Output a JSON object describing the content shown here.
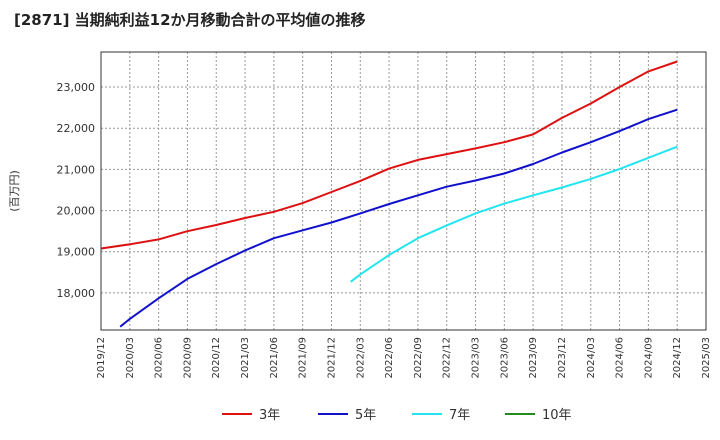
{
  "chart_data": {
    "type": "line",
    "title": "[2871]  当期純利益12か月移動合計の平均値の推移",
    "ylabel": "(百万円)",
    "xlabel": "",
    "ylim": [
      17100,
      23850
    ],
    "yticks": [
      18000,
      19000,
      20000,
      21000,
      22000,
      23000
    ],
    "ytick_labels": [
      "18,000",
      "19,000",
      "20,000",
      "21,000",
      "22,000",
      "23,000"
    ],
    "xticks": [
      "2019/12",
      "2020/03",
      "2020/06",
      "2020/09",
      "2020/12",
      "2021/03",
      "2021/06",
      "2021/09",
      "2021/12",
      "2022/03",
      "2022/06",
      "2022/09",
      "2022/12",
      "2023/03",
      "2023/06",
      "2023/09",
      "2023/12",
      "2024/03",
      "2024/06",
      "2024/09",
      "2024/12",
      "2025/03"
    ],
    "grid": true,
    "legend_position": "bottom",
    "series": [
      {
        "name": "3年",
        "color": "#dd1111",
        "x": [
          "2019/12",
          "2020/03",
          "2020/06",
          "2020/09",
          "2020/12",
          "2021/03",
          "2021/06",
          "2021/09",
          "2021/12",
          "2022/03",
          "2022/06",
          "2022/09",
          "2022/12",
          "2023/03",
          "2023/06",
          "2023/09",
          "2023/12",
          "2024/03",
          "2024/06",
          "2024/09",
          "2024/12"
        ],
        "values": [
          19080,
          19180,
          19300,
          19500,
          19650,
          19820,
          19970,
          20180,
          20450,
          20720,
          21020,
          21230,
          21370,
          21510,
          21660,
          21850,
          22250,
          22600,
          23000,
          23380,
          23620
        ]
      },
      {
        "name": "5年",
        "color": "#1111cc",
        "x": [
          "2020/02",
          "2020/03",
          "2020/06",
          "2020/09",
          "2020/12",
          "2021/03",
          "2021/06",
          "2021/09",
          "2021/12",
          "2022/03",
          "2022/06",
          "2022/09",
          "2022/12",
          "2023/03",
          "2023/06",
          "2023/09",
          "2023/12",
          "2024/03",
          "2024/06",
          "2024/09",
          "2024/12"
        ],
        "values": [
          17180,
          17370,
          17870,
          18340,
          18700,
          19030,
          19330,
          19520,
          19710,
          19930,
          20160,
          20370,
          20580,
          20730,
          20900,
          21130,
          21410,
          21660,
          21930,
          22220,
          22450
        ]
      },
      {
        "name": "7年",
        "color": "#22e5f0",
        "x": [
          "2022/02",
          "2022/03",
          "2022/06",
          "2022/09",
          "2022/12",
          "2023/03",
          "2023/06",
          "2023/09",
          "2023/12",
          "2024/03",
          "2024/06",
          "2024/09",
          "2024/12"
        ],
        "values": [
          18270,
          18450,
          18920,
          19330,
          19640,
          19930,
          20170,
          20370,
          20560,
          20770,
          21010,
          21280,
          21550
        ]
      },
      {
        "name": "10年",
        "color": "#228b22",
        "x": [],
        "values": []
      }
    ]
  }
}
